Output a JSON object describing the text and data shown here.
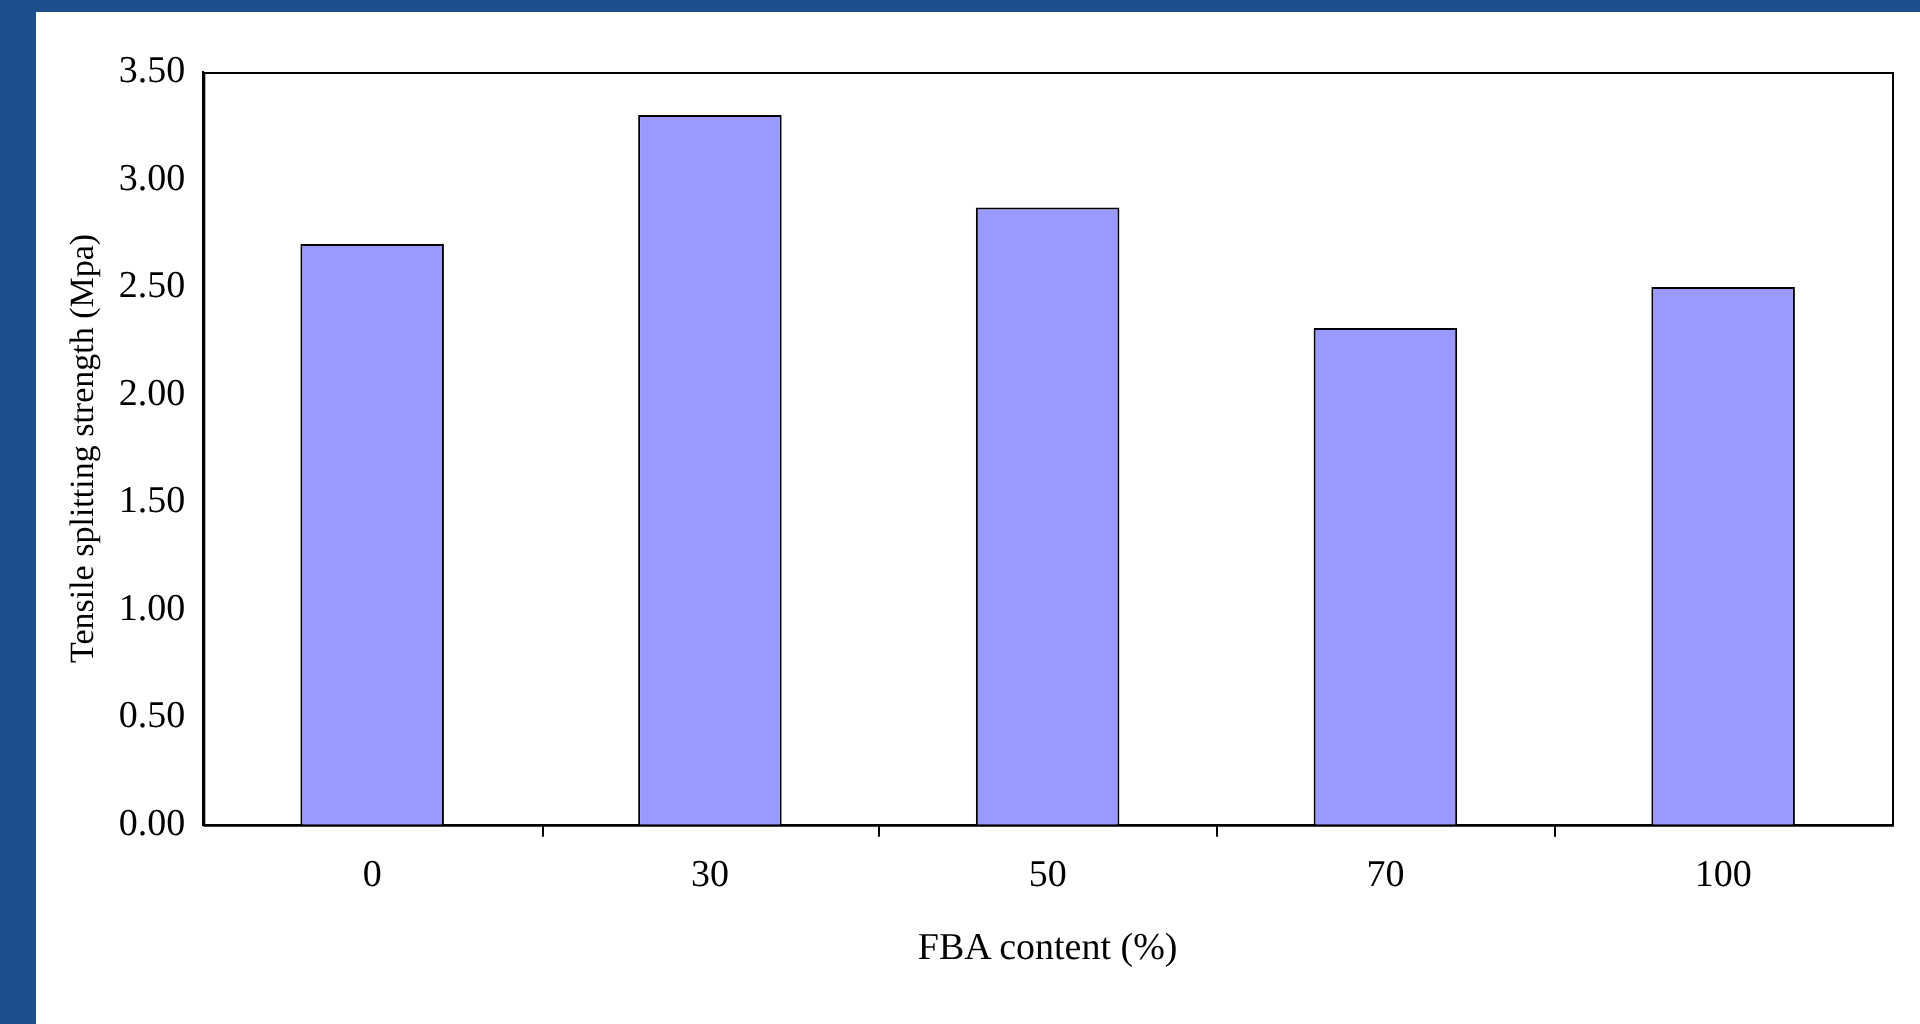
{
  "chart_data": {
    "type": "bar",
    "xlabel": "FBA content (%)",
    "ylabel": "Tensile splitting strength (Mpa)",
    "categories": [
      "0",
      "30",
      "50",
      "70",
      "100"
    ],
    "values": [
      2.7,
      3.3,
      2.87,
      2.31,
      2.5
    ],
    "color": "#9999ff",
    "ylim": [
      0,
      3.5
    ],
    "yticks": [
      {
        "value": 0,
        "label": "0.00"
      },
      {
        "value": 0.5,
        "label": "0.50"
      },
      {
        "value": 1,
        "label": "1.00"
      },
      {
        "value": 1.5,
        "label": "1.50"
      },
      {
        "value": 2,
        "label": "2.00"
      },
      {
        "value": 2.5,
        "label": "2.50"
      },
      {
        "value": 3,
        "label": "3.00"
      },
      {
        "value": 3.5,
        "label": "3.50"
      }
    ],
    "grid": false,
    "legend": false
  }
}
